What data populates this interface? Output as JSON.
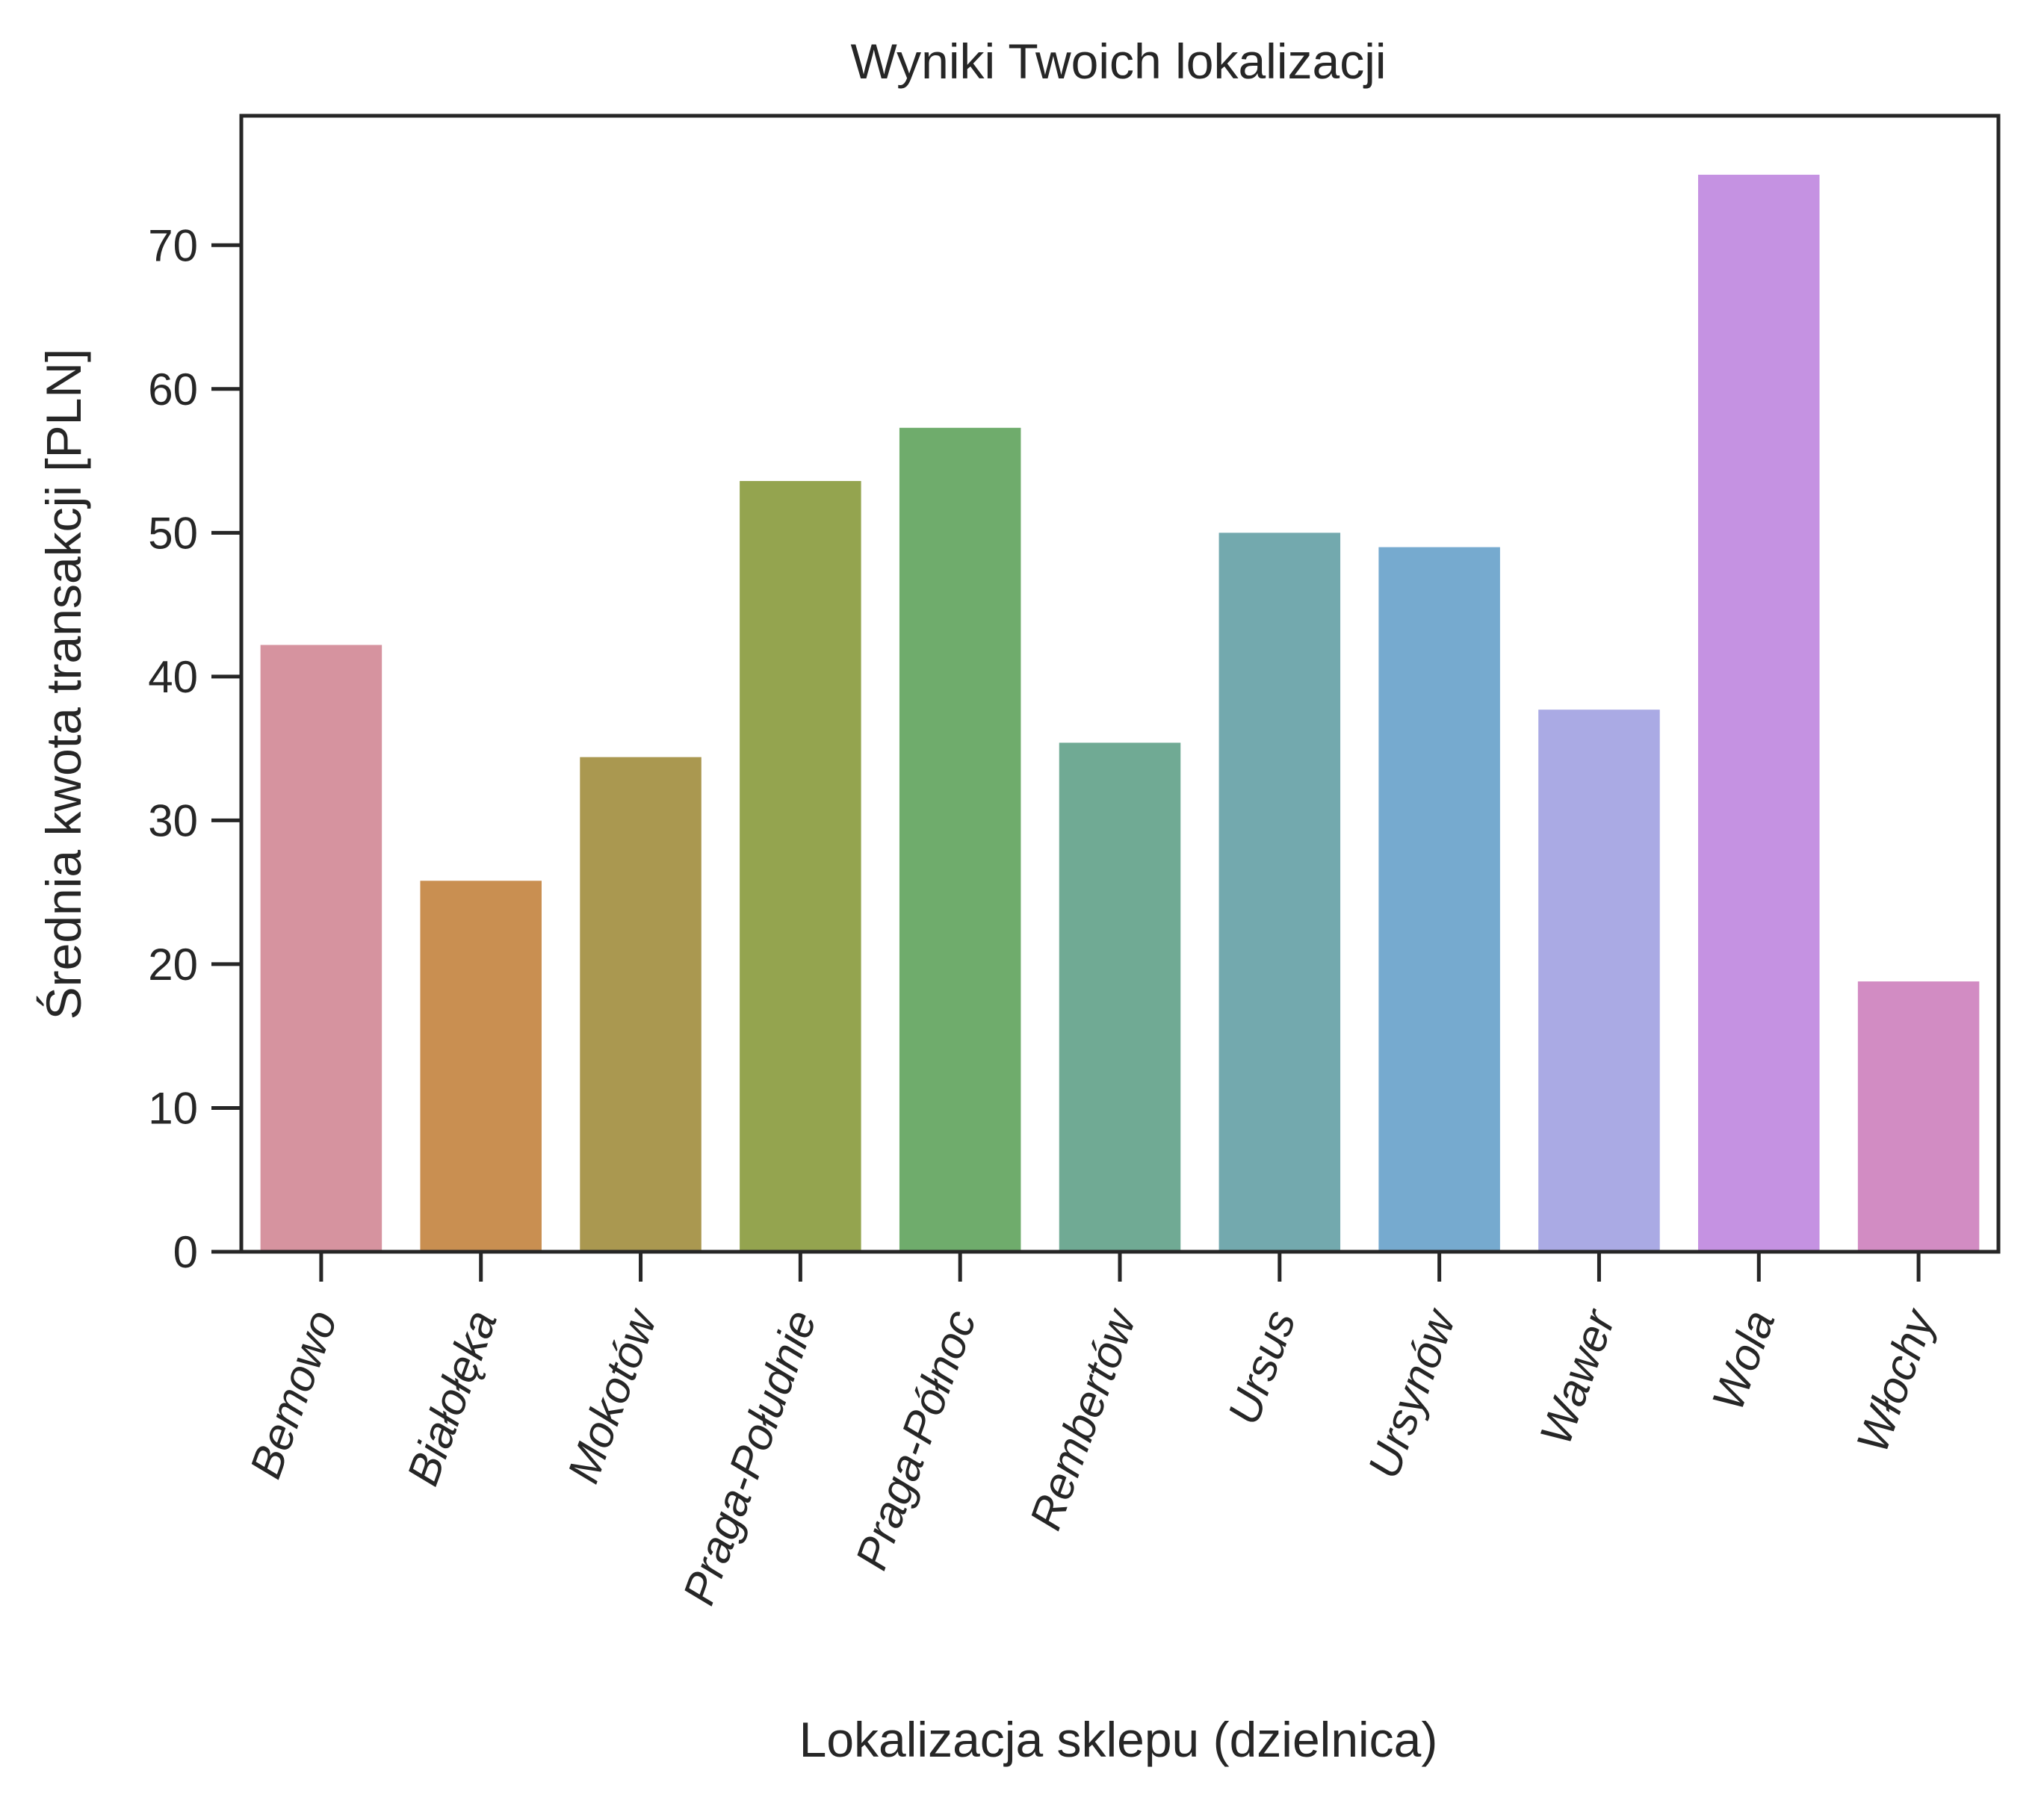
{
  "chart_data": {
    "type": "bar",
    "title": "Wyniki Twoich lokalizacji",
    "xlabel": "Lokalizacja sklepu (dzielnica)",
    "ylabel": "Średnia kwota transakcji [PLN]",
    "categories": [
      "Bemowo",
      "Białołęka",
      "Mokotów",
      "Praga-Południe",
      "Praga-Północ",
      "Rembertów",
      "Ursus",
      "Ursynów",
      "Wawer",
      "Wola",
      "Włochy"
    ],
    "values": [
      42.2,
      25.8,
      34.4,
      53.6,
      57.3,
      35.4,
      50.0,
      49.0,
      37.7,
      74.9,
      18.8
    ],
    "colors": [
      "#d6939f",
      "#c98f51",
      "#aa9850",
      "#94a44f",
      "#6fac6c",
      "#70aa94",
      "#73a9ae",
      "#76aacf",
      "#aaaae4",
      "#c592e2",
      "#d28cc3"
    ],
    "ylim": [
      0,
      79
    ],
    "yticks": [
      0,
      10,
      20,
      30,
      40,
      50,
      60,
      70
    ],
    "grid": false,
    "legend": "none"
  }
}
